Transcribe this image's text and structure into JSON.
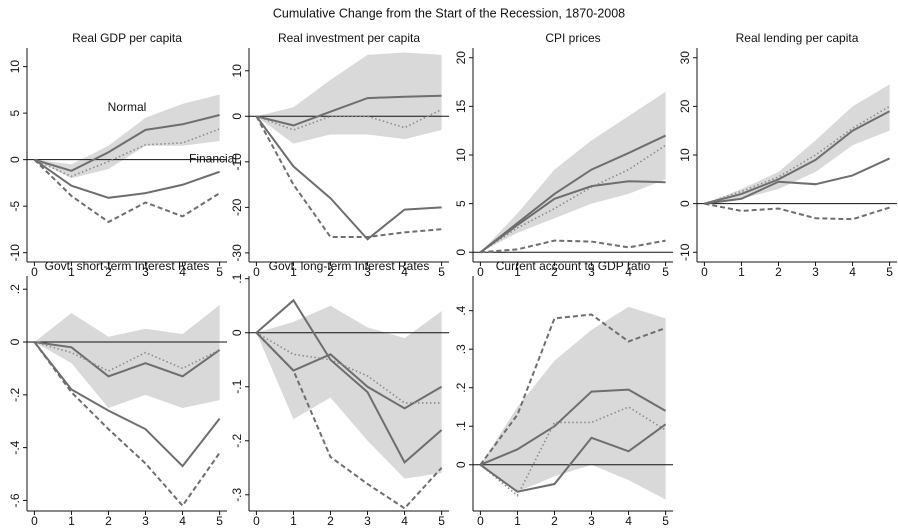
{
  "title": "Cumulative Change from the Start of the Recession, 1870-2008",
  "chart_data": [
    {
      "type": "line",
      "title": "Real GDP per capita",
      "annotations": [
        "Normal",
        "Financial"
      ],
      "x": [
        0,
        1,
        2,
        3,
        4,
        5
      ],
      "xlim": [
        -0.2,
        5.2
      ],
      "xticks": [
        0,
        1,
        2,
        3,
        4,
        5
      ],
      "ylim": [
        -11,
        12
      ],
      "yticks": [
        -10,
        -5,
        0,
        5,
        10
      ],
      "band": {
        "color": "#d9d9d9",
        "lower": [
          0,
          -2,
          -1,
          1.5,
          1.5,
          2
        ],
        "upper": [
          0,
          -0.5,
          1.5,
          4.5,
          6,
          7
        ]
      },
      "series": [
        {
          "color": "#6e6e6e",
          "style": "solid",
          "values": [
            0,
            -1.2,
            0.8,
            3.2,
            3.8,
            4.8
          ]
        },
        {
          "color": "#8c8c8c",
          "style": "dotted",
          "values": [
            0,
            -1.8,
            -0.2,
            1.6,
            1.8,
            3.3
          ]
        },
        {
          "color": "#6e6e6e",
          "style": "solid",
          "values": [
            0,
            -2.8,
            -4.1,
            -3.6,
            -2.7,
            -1.3
          ]
        },
        {
          "color": "#6e6e6e",
          "style": "dashed",
          "values": [
            0,
            -3.9,
            -6.7,
            -4.6,
            -6.1,
            -3.6
          ]
        }
      ]
    },
    {
      "type": "line",
      "title": "Real investment per capita",
      "x": [
        0,
        1,
        2,
        3,
        4,
        5
      ],
      "xlim": [
        -0.2,
        5.2
      ],
      "xticks": [
        0,
        1,
        2,
        3,
        4,
        5
      ],
      "ylim": [
        -32,
        15
      ],
      "yticks": [
        -30,
        -20,
        -10,
        0,
        10
      ],
      "band": {
        "color": "#d9d9d9",
        "lower": [
          0,
          -6,
          -4,
          -4,
          -5,
          -3
        ],
        "upper": [
          0,
          2,
          8,
          13.5,
          14,
          13.5
        ]
      },
      "series": [
        {
          "color": "#6e6e6e",
          "style": "solid",
          "values": [
            0,
            -2,
            1,
            4,
            4.3,
            4.5
          ]
        },
        {
          "color": "#8c8c8c",
          "style": "dotted",
          "values": [
            0,
            -3,
            0,
            0,
            -2.5,
            1.5
          ]
        },
        {
          "color": "#6e6e6e",
          "style": "solid",
          "values": [
            0,
            -11,
            -18,
            -27,
            -20.5,
            -20
          ]
        },
        {
          "color": "#6e6e6e",
          "style": "dashed",
          "values": [
            0,
            -15,
            -26.5,
            -26.5,
            -25.5,
            -24.8
          ]
        }
      ]
    },
    {
      "type": "line",
      "title": "CPI prices",
      "x": [
        0,
        1,
        2,
        3,
        4,
        5
      ],
      "xlim": [
        -0.2,
        5.2
      ],
      "xticks": [
        0,
        1,
        2,
        3,
        4,
        5
      ],
      "ylim": [
        -1,
        21
      ],
      "yticks": [
        0,
        5,
        10,
        15,
        20
      ],
      "band": {
        "color": "#d9d9d9",
        "lower": [
          0,
          2,
          3.5,
          5,
          6,
          7.5
        ],
        "upper": [
          0,
          4,
          8.5,
          11.5,
          14,
          16.5
        ]
      },
      "series": [
        {
          "color": "#6e6e6e",
          "style": "solid",
          "values": [
            0,
            3,
            6,
            8.5,
            10.2,
            12
          ]
        },
        {
          "color": "#8c8c8c",
          "style": "dotted",
          "values": [
            0,
            2.5,
            4.5,
            6.7,
            8.5,
            11
          ]
        },
        {
          "color": "#6e6e6e",
          "style": "solid",
          "values": [
            0,
            2.8,
            5.5,
            6.8,
            7.3,
            7.2
          ]
        },
        {
          "color": "#6e6e6e",
          "style": "dashed",
          "values": [
            0,
            0.3,
            1.2,
            1.1,
            0.5,
            1.2
          ]
        }
      ]
    },
    {
      "type": "line",
      "title": "Real lending per capita",
      "x": [
        0,
        1,
        2,
        3,
        4,
        5
      ],
      "xlim": [
        -0.2,
        5.2
      ],
      "xticks": [
        0,
        1,
        2,
        3,
        4,
        5
      ],
      "ylim": [
        -12,
        32
      ],
      "yticks": [
        -10,
        0,
        10,
        20,
        30
      ],
      "band": {
        "color": "#d9d9d9",
        "lower": [
          0,
          1,
          3,
          6.5,
          12,
          15
        ],
        "upper": [
          0,
          3,
          6.5,
          13,
          20,
          24.5
        ]
      },
      "series": [
        {
          "color": "#6e6e6e",
          "style": "solid",
          "values": [
            0,
            2,
            5,
            9,
            15,
            19
          ]
        },
        {
          "color": "#8c8c8c",
          "style": "dotted",
          "values": [
            0,
            2.5,
            5.5,
            10,
            15.5,
            20
          ]
        },
        {
          "color": "#6e6e6e",
          "style": "solid",
          "values": [
            0,
            1,
            4.5,
            4,
            5.8,
            9.3
          ]
        },
        {
          "color": "#6e6e6e",
          "style": "dashed",
          "values": [
            0,
            -1.5,
            -1,
            -3,
            -3.2,
            -0.8
          ]
        }
      ]
    },
    {
      "type": "line",
      "title": "Govt. short-term Interest Rates",
      "x": [
        0,
        1,
        2,
        3,
        4,
        5
      ],
      "xlim": [
        -0.2,
        5.2
      ],
      "xticks": [
        0,
        1,
        2,
        3,
        4,
        5
      ],
      "ylim": [
        -0.64,
        0.25
      ],
      "yticks": [
        {
          "value": -0.6,
          "label": "-.6"
        },
        {
          "value": -0.4,
          "label": "-.4"
        },
        {
          "value": -0.2,
          "label": "-.2"
        },
        0,
        {
          "value": 0.2,
          "label": ".2"
        }
      ],
      "band": {
        "color": "#d9d9d9",
        "lower": [
          0,
          -0.08,
          -0.25,
          -0.2,
          -0.25,
          -0.22
        ],
        "upper": [
          0,
          0.11,
          0.02,
          0.05,
          0.03,
          0.14
        ]
      },
      "series": [
        {
          "color": "#6e6e6e",
          "style": "solid",
          "values": [
            0,
            -0.02,
            -0.13,
            -0.08,
            -0.13,
            -0.03
          ]
        },
        {
          "color": "#8c8c8c",
          "style": "dotted",
          "values": [
            0,
            -0.04,
            -0.11,
            -0.04,
            -0.1,
            -0.03
          ]
        },
        {
          "color": "#6e6e6e",
          "style": "solid",
          "values": [
            0,
            -0.18,
            -0.26,
            -0.33,
            -0.47,
            -0.29
          ]
        },
        {
          "color": "#6e6e6e",
          "style": "dashed",
          "values": [
            0,
            -0.19,
            -0.33,
            -0.46,
            -0.62,
            -0.42
          ]
        }
      ]
    },
    {
      "type": "line",
      "title": "Govt. long-term Interest Rates",
      "x": [
        0,
        1,
        2,
        3,
        4,
        5
      ],
      "xlim": [
        -0.2,
        5.2
      ],
      "xticks": [
        0,
        1,
        2,
        3,
        4,
        5
      ],
      "ylim": [
        -0.33,
        0.105
      ],
      "yticks": [
        {
          "value": -0.3,
          "label": "-.3"
        },
        {
          "value": -0.2,
          "label": "-.2"
        },
        {
          "value": -0.1,
          "label": "-.1"
        },
        0,
        {
          "value": 0.1,
          "label": ".1"
        }
      ],
      "band": {
        "color": "#d9d9d9",
        "lower": [
          0,
          -0.16,
          -0.12,
          -0.2,
          -0.27,
          -0.26
        ],
        "upper": [
          0,
          0.02,
          0.05,
          0.01,
          -0.01,
          0.04
        ]
      },
      "series": [
        {
          "color": "#6e6e6e",
          "style": "solid",
          "values": [
            0,
            -0.07,
            -0.04,
            -0.1,
            -0.14,
            -0.1
          ]
        },
        {
          "color": "#8c8c8c",
          "style": "dotted",
          "values": [
            0,
            -0.04,
            -0.05,
            -0.08,
            -0.13,
            -0.13
          ]
        },
        {
          "color": "#6e6e6e",
          "style": "solid",
          "values": [
            0,
            0.06,
            -0.05,
            -0.11,
            -0.24,
            -0.18
          ]
        },
        {
          "color": "#6e6e6e",
          "style": "dashed",
          "values": [
            0,
            -0.07,
            -0.23,
            -0.28,
            -0.325,
            -0.25
          ]
        }
      ]
    },
    {
      "type": "line",
      "title": "Current account to GDP ratio",
      "x": [
        0,
        1,
        2,
        3,
        4,
        5
      ],
      "xlim": [
        -0.2,
        5.2
      ],
      "xticks": [
        0,
        1,
        2,
        3,
        4,
        5
      ],
      "ylim": [
        -0.12,
        0.49
      ],
      "yticks": [
        0,
        {
          "value": 0.1,
          "label": ".1"
        },
        {
          "value": 0.2,
          "label": ".2"
        },
        {
          "value": 0.3,
          "label": ".3"
        },
        {
          "value": 0.4,
          "label": ".4"
        }
      ],
      "band": {
        "color": "#d9d9d9",
        "lower": [
          0,
          -0.07,
          -0.03,
          0,
          -0.04,
          -0.09
        ],
        "upper": [
          0,
          0.15,
          0.27,
          0.35,
          0.41,
          0.38
        ]
      },
      "series": [
        {
          "color": "#6e6e6e",
          "style": "solid",
          "values": [
            0,
            0.04,
            0.1,
            0.19,
            0.195,
            0.14
          ]
        },
        {
          "color": "#8c8c8c",
          "style": "dotted",
          "values": [
            0,
            -0.08,
            0.11,
            0.11,
            0.15,
            0.09
          ]
        },
        {
          "color": "#6e6e6e",
          "style": "solid",
          "values": [
            0,
            -0.07,
            -0.05,
            0.07,
            0.035,
            0.105
          ]
        },
        {
          "color": "#6e6e6e",
          "style": "dashed",
          "values": [
            0,
            0.13,
            0.38,
            0.39,
            0.32,
            0.355
          ]
        }
      ]
    }
  ]
}
